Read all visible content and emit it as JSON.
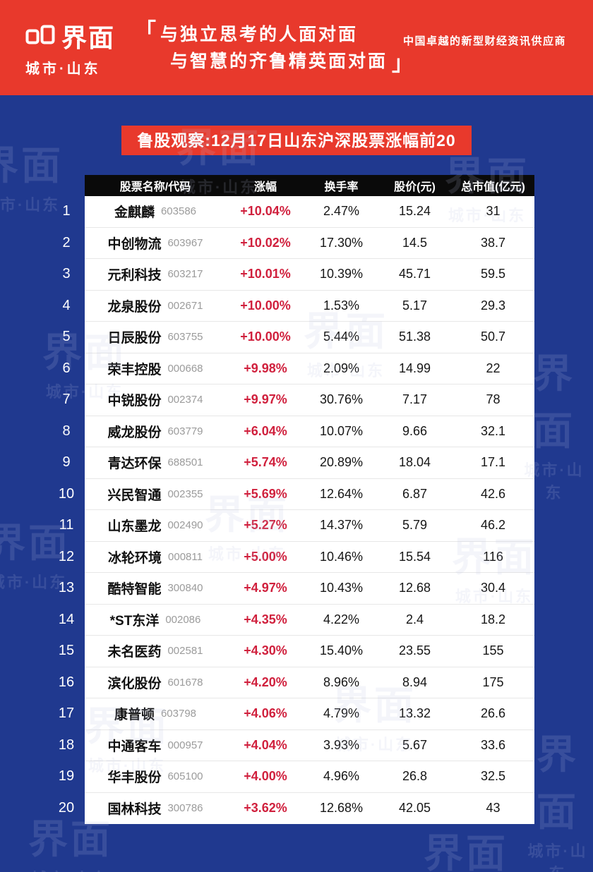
{
  "colors": {
    "banner_red": "#e8392c",
    "navy_background": "#20398f",
    "table_header_black": "#0a0a0a",
    "change_red": "#d0203d",
    "code_gray": "#9b9b9b"
  },
  "header": {
    "logo_title": "界面",
    "logo_subtitle": "城市·山东",
    "quote_open": "「",
    "quote_line1": "与独立思考的人面对面",
    "quote_line2": "与智慧的齐鲁精英面对面",
    "quote_close": "」",
    "tagline": "中国卓越的新型财经资讯供应商"
  },
  "title_bar": {
    "text": "鲁股观察:12月17日山东沪深股票涨幅前20"
  },
  "watermark": {
    "line1": "界面",
    "line2": "城市·山东"
  },
  "table": {
    "columns": [
      "股票名称/代码",
      "涨幅",
      "换手率",
      "股价(元)",
      "总市值(亿元)"
    ],
    "rows": [
      {
        "rank": 1,
        "name": "金麒麟",
        "code": "603586",
        "change": "+10.04%",
        "turnover": "2.47%",
        "price": "15.24",
        "market_cap": "31"
      },
      {
        "rank": 2,
        "name": "中创物流",
        "code": "603967",
        "change": "+10.02%",
        "turnover": "17.30%",
        "price": "14.5",
        "market_cap": "38.7"
      },
      {
        "rank": 3,
        "name": "元利科技",
        "code": "603217",
        "change": "+10.01%",
        "turnover": "10.39%",
        "price": "45.71",
        "market_cap": "59.5"
      },
      {
        "rank": 4,
        "name": "龙泉股份",
        "code": "002671",
        "change": "+10.00%",
        "turnover": "1.53%",
        "price": "5.17",
        "market_cap": "29.3"
      },
      {
        "rank": 5,
        "name": "日辰股份",
        "code": "603755",
        "change": "+10.00%",
        "turnover": "5.44%",
        "price": "51.38",
        "market_cap": "50.7"
      },
      {
        "rank": 6,
        "name": "荣丰控股",
        "code": "000668",
        "change": "+9.98%",
        "turnover": "2.09%",
        "price": "14.99",
        "market_cap": "22"
      },
      {
        "rank": 7,
        "name": "中锐股份",
        "code": "002374",
        "change": "+9.97%",
        "turnover": "30.76%",
        "price": "7.17",
        "market_cap": "78"
      },
      {
        "rank": 8,
        "name": "威龙股份",
        "code": "603779",
        "change": "+6.04%",
        "turnover": "10.07%",
        "price": "9.66",
        "market_cap": "32.1"
      },
      {
        "rank": 9,
        "name": "青达环保",
        "code": "688501",
        "change": "+5.74%",
        "turnover": "20.89%",
        "price": "18.04",
        "market_cap": "17.1"
      },
      {
        "rank": 10,
        "name": "兴民智通",
        "code": "002355",
        "change": "+5.69%",
        "turnover": "12.64%",
        "price": "6.87",
        "market_cap": "42.6"
      },
      {
        "rank": 11,
        "name": "山东墨龙",
        "code": "002490",
        "change": "+5.27%",
        "turnover": "14.37%",
        "price": "5.79",
        "market_cap": "46.2"
      },
      {
        "rank": 12,
        "name": "冰轮环境",
        "code": "000811",
        "change": "+5.00%",
        "turnover": "10.46%",
        "price": "15.54",
        "market_cap": "116"
      },
      {
        "rank": 13,
        "name": "酷特智能",
        "code": "300840",
        "change": "+4.97%",
        "turnover": "10.43%",
        "price": "12.68",
        "market_cap": "30.4"
      },
      {
        "rank": 14,
        "name": "*ST东洋",
        "code": "002086",
        "change": "+4.35%",
        "turnover": "4.22%",
        "price": "2.4",
        "market_cap": "18.2"
      },
      {
        "rank": 15,
        "name": "未名医药",
        "code": "002581",
        "change": "+4.30%",
        "turnover": "15.40%",
        "price": "23.55",
        "market_cap": "155"
      },
      {
        "rank": 16,
        "name": "滨化股份",
        "code": "601678",
        "change": "+4.20%",
        "turnover": "8.96%",
        "price": "8.94",
        "market_cap": "175"
      },
      {
        "rank": 17,
        "name": "康普顿",
        "code": "603798",
        "change": "+4.06%",
        "turnover": "4.79%",
        "price": "13.32",
        "market_cap": "26.6"
      },
      {
        "rank": 18,
        "name": "中通客车",
        "code": "000957",
        "change": "+4.04%",
        "turnover": "3.93%",
        "price": "5.67",
        "market_cap": "33.6"
      },
      {
        "rank": 19,
        "name": "华丰股份",
        "code": "605100",
        "change": "+4.00%",
        "turnover": "4.96%",
        "price": "26.8",
        "market_cap": "32.5"
      },
      {
        "rank": 20,
        "name": "国林科技",
        "code": "300786",
        "change": "+3.62%",
        "turnover": "12.68%",
        "price": "42.05",
        "market_cap": "43"
      }
    ]
  }
}
